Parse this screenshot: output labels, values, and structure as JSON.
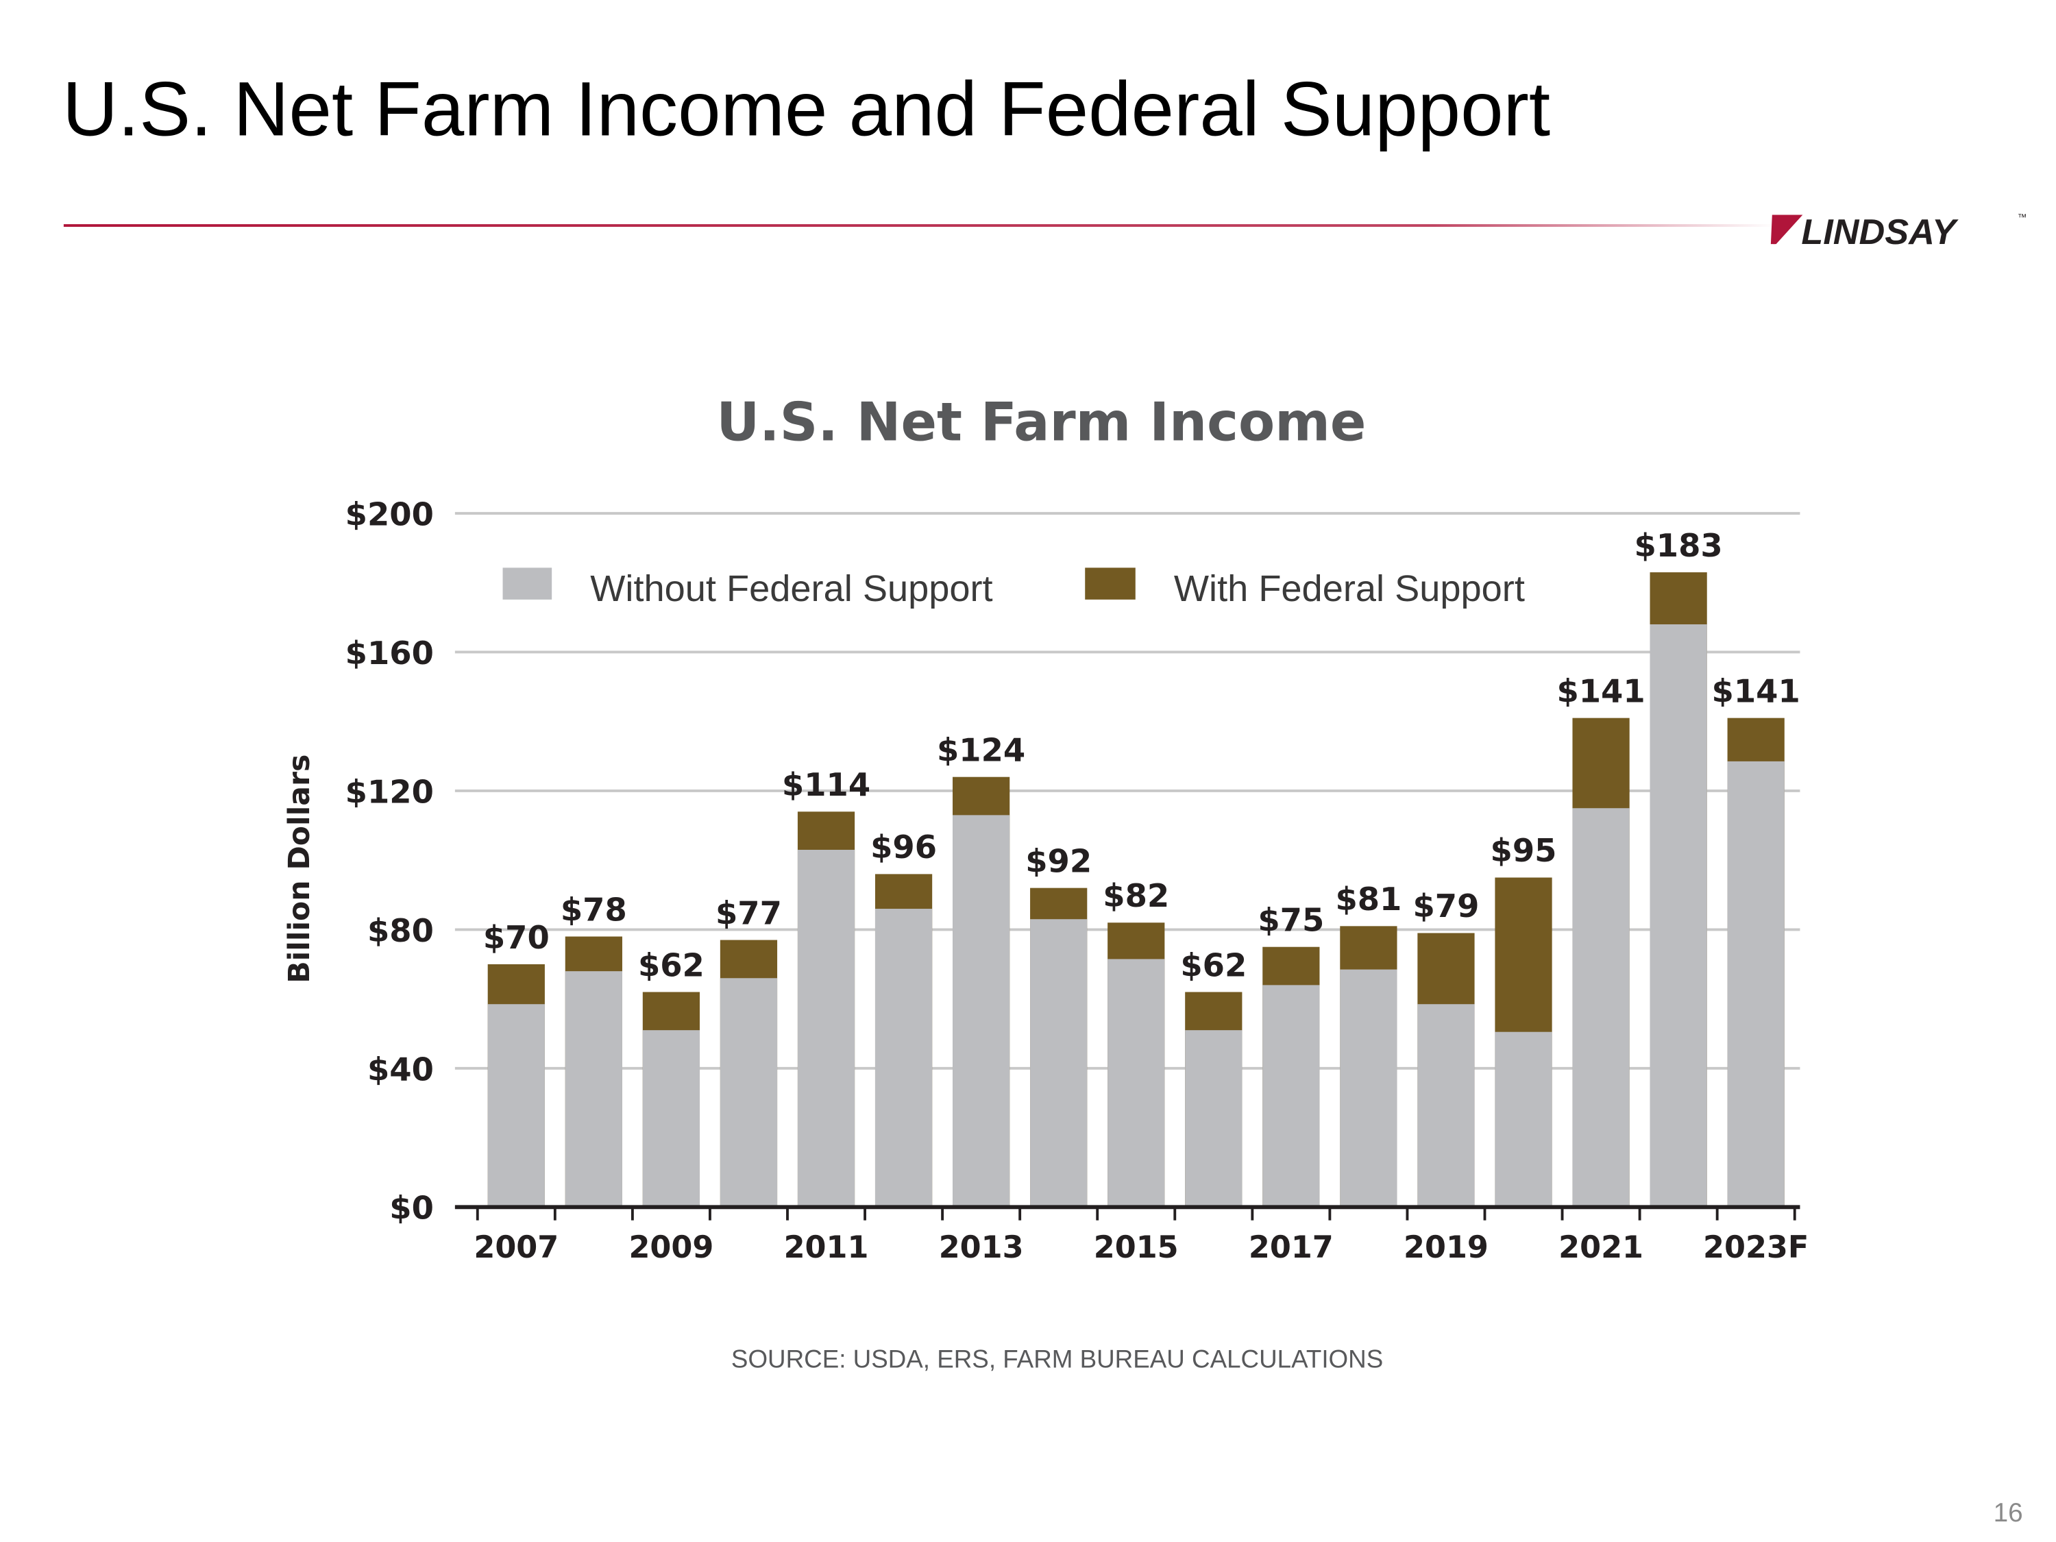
{
  "slide": {
    "title": "U.S. Net Farm Income and Federal Support",
    "logo": "LINDSAY",
    "logo_mark": "™",
    "page_number": "16"
  },
  "chart_data": {
    "type": "bar",
    "title": "U.S. Net Farm Income",
    "y_label": "Billion Dollars",
    "source": "SOURCE: USDA, ERS, FARM BUREAU CALCULATIONS",
    "categories": [
      "2007",
      null,
      "2009",
      null,
      "2011",
      null,
      "2013",
      null,
      "2015",
      null,
      "2017",
      null,
      "2019",
      null,
      "2021",
      null,
      "2023F"
    ],
    "series": [
      {
        "name": "With Federal Support",
        "color": "#735a22",
        "values": [
          70,
          78,
          62,
          77,
          114,
          96,
          124,
          92,
          82,
          62,
          75,
          81,
          79,
          95,
          141,
          183,
          141
        ],
        "value_labels": [
          "$70",
          "$78",
          "$62",
          "$77",
          "$114",
          "$96",
          "$124",
          "$92",
          "$82",
          "$62",
          "$75",
          "$81",
          "$79",
          "$95",
          "$141",
          "$183",
          "$141"
        ]
      },
      {
        "name": "Without Federal Support",
        "color": "#bcbdc0",
        "values": [
          58.5,
          68,
          51,
          66,
          103,
          86,
          113,
          83,
          71.5,
          51,
          64,
          68.5,
          58.5,
          50.5,
          115,
          168,
          128.5
        ]
      }
    ],
    "ylim": [
      0,
      200
    ],
    "yticks": [
      {
        "value": 0,
        "label": "$0"
      },
      {
        "value": 40,
        "label": "$40"
      },
      {
        "value": 80,
        "label": "$80"
      },
      {
        "value": 120,
        "label": "$120"
      },
      {
        "value": 160,
        "label": "$160"
      },
      {
        "value": 200,
        "label": "$200"
      }
    ],
    "grid": true
  }
}
